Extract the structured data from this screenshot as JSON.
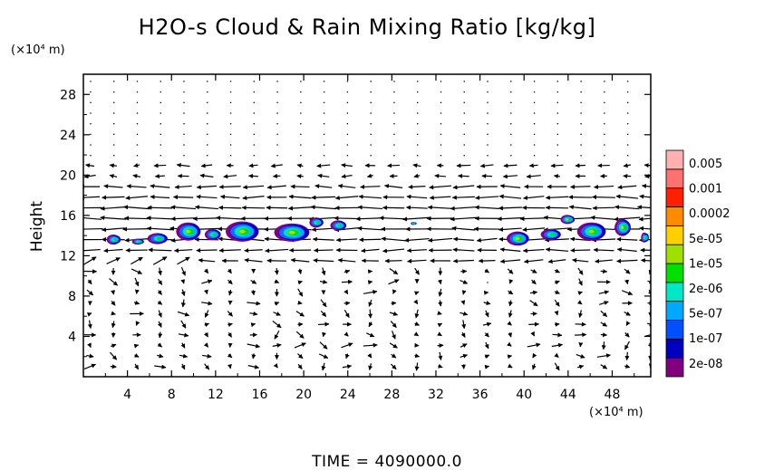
{
  "chart_data": {
    "type": "heatmap",
    "title": "H2O-s Cloud & Rain Mixing Ratio [kg/kg]",
    "ylabel": "Height",
    "x_unit": "(×10⁴ m)",
    "y_unit": "(×10⁴ m)",
    "xlim": [
      0,
      51.5
    ],
    "ylim": [
      0,
      30
    ],
    "x_ticks": [
      "4",
      "8",
      "12",
      "16",
      "20",
      "24",
      "28",
      "32",
      "36",
      "40",
      "44",
      "48"
    ],
    "y_ticks": [
      "4",
      "8",
      "12",
      "16",
      "20",
      "24",
      "28"
    ],
    "colorbar": {
      "labels": [
        "0.005",
        "0.001",
        "0.0002",
        "5e-05",
        "1e-05",
        "2e-06",
        "5e-07",
        "1e-07",
        "2e-08"
      ],
      "colors": [
        "#800080",
        "#0000c0",
        "#0050ff",
        "#00a8ff",
        "#00e8c8",
        "#00e000",
        "#a0e000",
        "#ffd000",
        "#ff8c00",
        "#ff2000",
        "#ff7070",
        "#ffb0b0"
      ]
    },
    "cloud_regions": [
      {
        "x": 2.8,
        "y": 13.6,
        "w": 1.2,
        "h": 1.0,
        "level": 5
      },
      {
        "x": 5.0,
        "y": 13.4,
        "w": 1.0,
        "h": 0.6,
        "level": 5
      },
      {
        "x": 6.8,
        "y": 13.7,
        "w": 1.8,
        "h": 1.1,
        "level": 5
      },
      {
        "x": 9.6,
        "y": 14.4,
        "w": 2.2,
        "h": 1.8,
        "level": 6
      },
      {
        "x": 11.8,
        "y": 14.1,
        "w": 1.4,
        "h": 1.1,
        "level": 5
      },
      {
        "x": 14.5,
        "y": 14.4,
        "w": 3.0,
        "h": 2.0,
        "level": 6
      },
      {
        "x": 19.0,
        "y": 14.3,
        "w": 3.2,
        "h": 1.8,
        "level": 6
      },
      {
        "x": 21.2,
        "y": 15.3,
        "w": 1.2,
        "h": 1.0,
        "level": 5
      },
      {
        "x": 23.2,
        "y": 15.0,
        "w": 1.4,
        "h": 1.0,
        "level": 5
      },
      {
        "x": 30.0,
        "y": 15.2,
        "w": 0.4,
        "h": 0.3,
        "level": 4
      },
      {
        "x": 39.5,
        "y": 13.7,
        "w": 2.0,
        "h": 1.4,
        "level": 6
      },
      {
        "x": 42.5,
        "y": 14.1,
        "w": 1.8,
        "h": 1.1,
        "level": 5
      },
      {
        "x": 44.0,
        "y": 15.6,
        "w": 1.2,
        "h": 0.9,
        "level": 6
      },
      {
        "x": 46.2,
        "y": 14.4,
        "w": 2.6,
        "h": 1.8,
        "level": 6
      },
      {
        "x": 49.0,
        "y": 14.8,
        "w": 1.4,
        "h": 1.7,
        "level": 6
      },
      {
        "x": 51.0,
        "y": 13.8,
        "w": 0.6,
        "h": 1.0,
        "level": 5
      }
    ]
  },
  "time_label": "TIME = 4090000.0"
}
